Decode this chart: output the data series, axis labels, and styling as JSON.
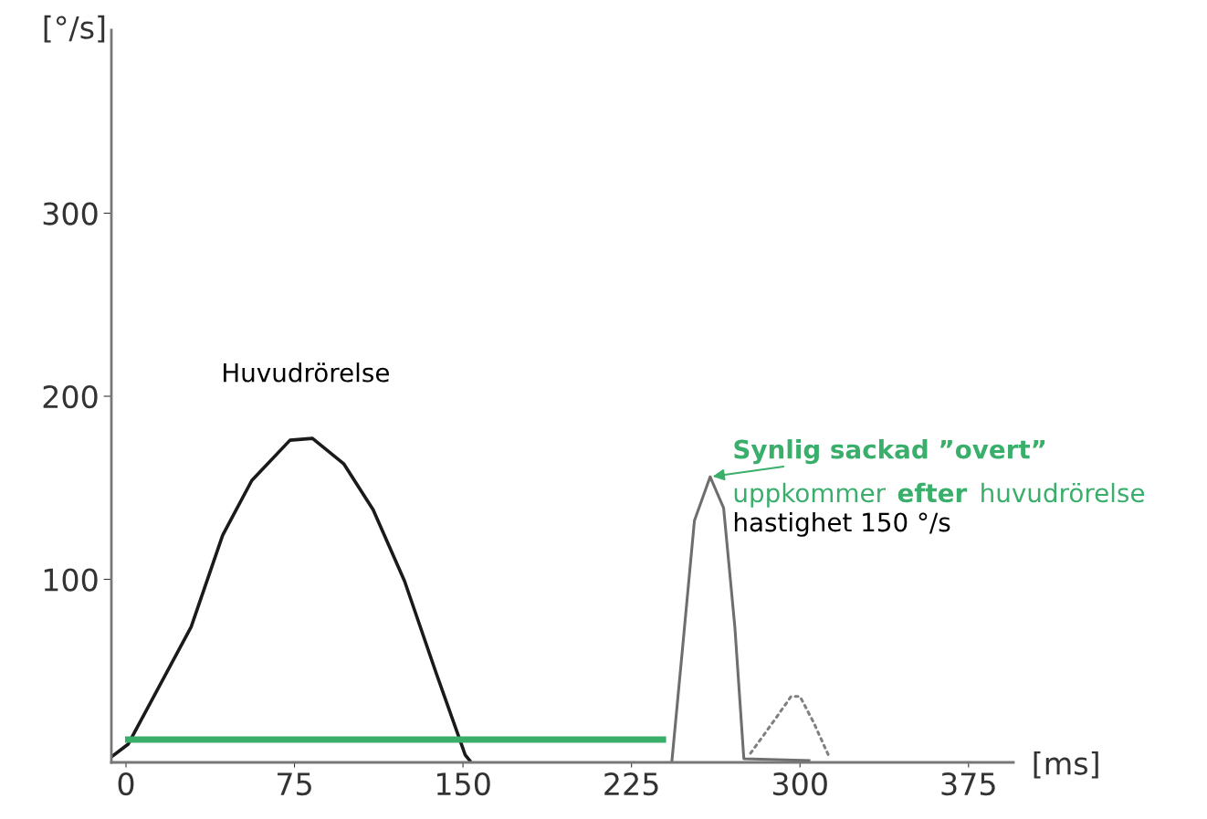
{
  "chart_data": {
    "type": "line",
    "xlabel": "[ms]",
    "ylabel": "[°/s]",
    "xlim": [
      -6.5,
      395
    ],
    "ylim": [
      0,
      400
    ],
    "xticks": [
      0,
      75,
      150,
      225,
      300,
      375
    ],
    "yticks": [
      100,
      200,
      300
    ],
    "grid": false,
    "legend": false,
    "marker": "none",
    "series": [
      {
        "color": "#1a1a1a",
        "line_style": "solid",
        "x": [
          -6.5,
          1,
          29,
          43,
          56,
          73,
          83,
          97,
          110,
          124,
          138,
          151,
          153
        ],
        "values": [
          3,
          10,
          74,
          124,
          154,
          176,
          177,
          163,
          138,
          99,
          49,
          4,
          1
        ]
      },
      {
        "color": "#6e6e6e",
        "line_style": "solid",
        "x": [
          243,
          248,
          253,
          260,
          266,
          271,
          275,
          304
        ],
        "values": [
          1,
          66,
          132,
          156,
          139,
          74,
          2,
          1
        ]
      },
      {
        "color": "#808080",
        "line_style": "dotted",
        "x": [
          278,
          288,
          296,
          300,
          306,
          313
        ],
        "values": [
          5,
          22,
          36,
          36,
          22,
          3
        ]
      },
      {
        "color": "#3aae6b",
        "line_style": "solid",
        "x": [
          1,
          239
        ],
        "values": [
          12.5,
          12.5
        ]
      }
    ],
    "annotations": [
      "Huvudrörelse",
      {
        "text": "Synlig sackad ”overt”",
        "x": 260,
        "y": 156
      },
      "uppkommer efter huvudrörelse",
      "hastighet 150 °/s"
    ]
  }
}
